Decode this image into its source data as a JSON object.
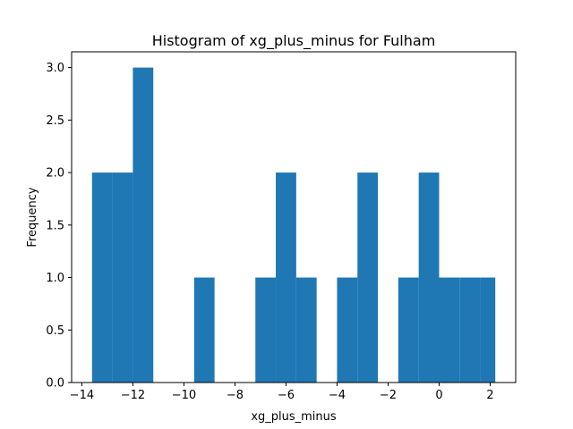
{
  "chart_data": {
    "type": "bar",
    "subtype": "histogram",
    "title": "Histogram of xg_plus_minus for Fulham",
    "xlabel": "xg_plus_minus",
    "ylabel": "Frequency",
    "bar_color": "#1f77b4",
    "xlim": [
      -14.4,
      3.0
    ],
    "ylim": [
      0,
      3.15
    ],
    "grid": false,
    "bin_edges": [
      -13.6,
      -12.8,
      -12.0,
      -11.2,
      -10.4,
      -9.6,
      -8.8,
      -8.0,
      -7.2,
      -6.4,
      -5.6,
      -4.8,
      -4.0,
      -3.2,
      -2.4,
      -1.6,
      -0.8,
      0.0,
      0.8,
      1.6,
      2.2
    ],
    "values": [
      2,
      2,
      3,
      0,
      0,
      1,
      0,
      0,
      1,
      2,
      1,
      0,
      1,
      2,
      0,
      1,
      2,
      1,
      1,
      1
    ],
    "xticks": [
      -14,
      -12,
      -10,
      -8,
      -6,
      -4,
      -2,
      0,
      2
    ],
    "xtick_labels": [
      "−14",
      "−12",
      "−10",
      "−8",
      "−6",
      "−4",
      "−2",
      "0",
      "2"
    ],
    "yticks": [
      0.0,
      0.5,
      1.0,
      1.5,
      2.0,
      2.5,
      3.0
    ],
    "ytick_labels": [
      "0.0",
      "0.5",
      "1.0",
      "1.5",
      "2.0",
      "2.5",
      "3.0"
    ]
  }
}
